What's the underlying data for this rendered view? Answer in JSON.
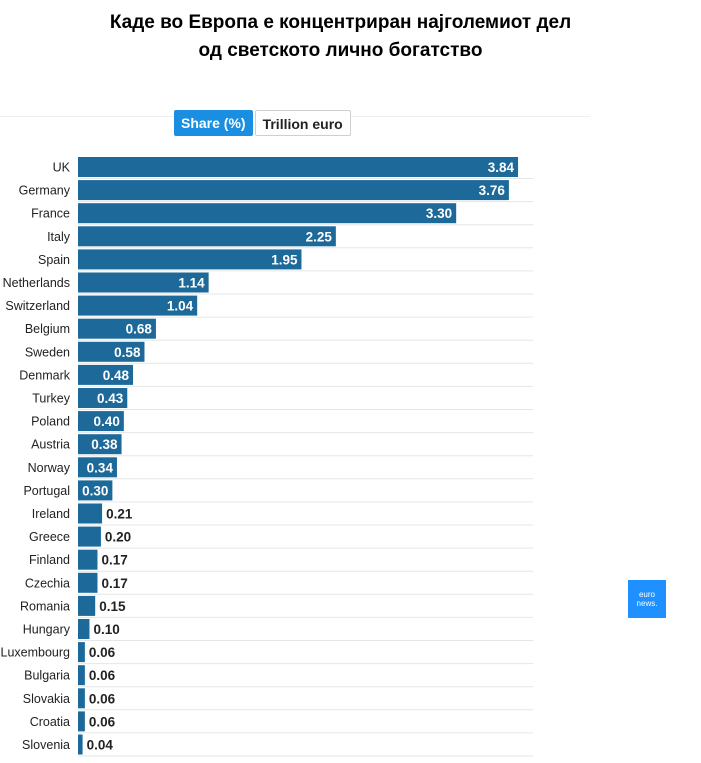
{
  "title": {
    "line1": "Каде во Европа е концентриран најголемиот дел",
    "line2": "од светското лично  богатство"
  },
  "tabs": [
    {
      "label": "Share (%)",
      "active": true
    },
    {
      "label": "Trillion euro",
      "active": false
    }
  ],
  "logo": {
    "line1": "euro",
    "line2": "news."
  },
  "chart_data": {
    "type": "bar",
    "orientation": "horizontal",
    "categories": [
      "UK",
      "Germany",
      "France",
      "Italy",
      "Spain",
      "Netherlands",
      "Switzerland",
      "Belgium",
      "Sweden",
      "Denmark",
      "Turkey",
      "Poland",
      "Austria",
      "Norway",
      "Portugal",
      "Ireland",
      "Greece",
      "Finland",
      "Czechia",
      "Romania",
      "Hungary",
      "Luxembourg",
      "Bulgaria",
      "Slovakia",
      "Croatia",
      "Slovenia"
    ],
    "values": [
      3.84,
      3.76,
      3.3,
      2.25,
      1.95,
      1.14,
      1.04,
      0.68,
      0.58,
      0.48,
      0.43,
      0.4,
      0.38,
      0.34,
      0.3,
      0.21,
      0.2,
      0.17,
      0.17,
      0.15,
      0.1,
      0.06,
      0.06,
      0.06,
      0.06,
      0.04
    ],
    "labels": [
      "3.84",
      "3.76",
      "3.30",
      "2.25",
      "1.95",
      "1.14",
      "1.04",
      "0.68",
      "0.58",
      "0.48",
      "0.43",
      "0.40",
      "0.38",
      "0.34",
      "0.30",
      "0.21",
      "0.20",
      "0.17",
      "0.17",
      "0.15",
      "0.10",
      "0.06",
      "0.06",
      "0.06",
      "0.06",
      "0.04"
    ],
    "bar_color": "#1d6a9a",
    "grid": true
  }
}
